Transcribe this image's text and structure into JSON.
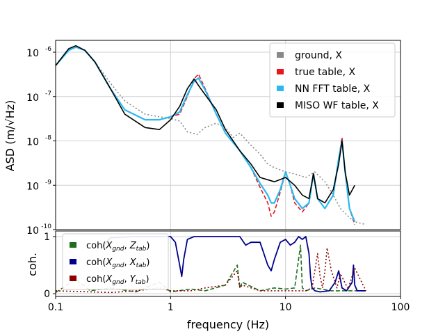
{
  "chart_data": [
    {
      "type": "line",
      "panel": "top",
      "xscale": "log",
      "yscale": "log",
      "xlim": [
        0.1,
        100
      ],
      "ylim": [
        1e-10,
        2e-06
      ],
      "xlabel": "frequency (Hz)",
      "ylabel": "ASD (m/√Hz)",
      "ytick_labels": [
        "10",
        "10",
        "10",
        "10",
        "10"
      ],
      "ytick_exponents": [
        "-6",
        "-7",
        "-8",
        "-9",
        "-10"
      ],
      "grid": true,
      "legend_position": "top-right",
      "series": [
        {
          "name": "ground, X",
          "color": "#888888",
          "style": "dotted",
          "x": [
            0.1,
            0.13,
            0.15,
            0.18,
            0.22,
            0.3,
            0.4,
            0.6,
            0.8,
            1.0,
            1.2,
            1.4,
            1.7,
            2.0,
            2.5,
            3.0,
            3.5,
            4.0,
            5.0,
            6.0,
            7.0,
            8.0,
            10.0,
            12.0,
            15.0,
            18.0,
            22.0,
            26.0,
            30.0,
            35.0,
            40.0,
            50.0
          ],
          "values": [
            5e-07,
            1.1e-06,
            1.3e-06,
            1.1e-06,
            6e-07,
            2e-07,
            8e-08,
            4e-08,
            3.5e-08,
            3.2e-08,
            2.8e-08,
            1.6e-08,
            1.4e-08,
            2e-08,
            2.5e-08,
            2e-08,
            1.2e-08,
            1.5e-08,
            8e-09,
            5e-09,
            3e-09,
            2.5e-09,
            2e-09,
            1.8e-09,
            1.5e-09,
            2e-09,
            1.2e-09,
            6e-10,
            3e-10,
            2e-10,
            1.5e-10,
            1.3e-10
          ]
        },
        {
          "name": "true table, X",
          "color": "#e8161a",
          "style": "dashed",
          "x": [
            0.1,
            0.13,
            0.15,
            0.18,
            0.22,
            0.3,
            0.4,
            0.6,
            0.8,
            1.0,
            1.2,
            1.4,
            1.6,
            1.75,
            2.0,
            2.5,
            3.0,
            4.0,
            5.0,
            6.0,
            7.0,
            7.5,
            8.0,
            9.0,
            10.0,
            11.0,
            12.0,
            14.0,
            16.0,
            17.5,
            19.0,
            22.0,
            26.0,
            29.0,
            31.0,
            33.0,
            36.0,
            40.0
          ],
          "values": [
            5e-07,
            1.1e-06,
            1.3e-06,
            1.1e-06,
            6e-07,
            1.5e-07,
            5e-08,
            3e-08,
            3e-08,
            3.5e-08,
            4e-08,
            1e-07,
            2.5e-07,
            3.2e-07,
            1.5e-07,
            4e-08,
            1.5e-08,
            6e-09,
            2.5e-09,
            9e-10,
            4e-10,
            2e-10,
            2.5e-10,
            7e-10,
            2e-09,
            1e-09,
            4e-10,
            2.5e-10,
            4e-10,
            2e-09,
            5e-10,
            3e-10,
            6e-10,
            4e-09,
            1.2e-08,
            2e-09,
            3e-10,
            1.3e-10
          ]
        },
        {
          "name": "NN FFT table, X",
          "color": "#29b9f0",
          "style": "solid",
          "x": [
            0.1,
            0.13,
            0.15,
            0.18,
            0.22,
            0.3,
            0.4,
            0.6,
            0.8,
            1.0,
            1.2,
            1.4,
            1.6,
            1.75,
            2.0,
            2.5,
            3.0,
            4.0,
            5.0,
            6.0,
            7.0,
            7.5,
            8.0,
            9.0,
            10.0,
            11.0,
            12.0,
            14.0,
            16.0,
            17.5,
            19.0,
            22.0,
            26.0,
            29.0,
            31.0,
            33.0,
            36.0,
            40.0
          ],
          "values": [
            5e-07,
            1.1e-06,
            1.3e-06,
            1.1e-06,
            6e-07,
            1.5e-07,
            5e-08,
            3e-08,
            3e-08,
            3.5e-08,
            4.5e-08,
            1.1e-07,
            2.2e-07,
            2.6e-07,
            1.4e-07,
            4e-08,
            1.5e-08,
            6e-09,
            2.5e-09,
            1.1e-09,
            6e-10,
            4e-10,
            4e-10,
            8e-10,
            2e-09,
            1e-09,
            5e-10,
            3e-10,
            4e-10,
            1.8e-09,
            5e-10,
            3e-10,
            6e-10,
            4e-09,
            1e-08,
            2e-09,
            3e-10,
            1.5e-10
          ]
        },
        {
          "name": "MISO WF table, X",
          "color": "#000000",
          "style": "solid",
          "x": [
            0.1,
            0.13,
            0.15,
            0.18,
            0.22,
            0.3,
            0.4,
            0.6,
            0.8,
            1.0,
            1.2,
            1.4,
            1.6,
            1.8,
            2.0,
            2.5,
            3.0,
            4.0,
            5.0,
            6.0,
            8.0,
            10.0,
            12.0,
            14.0,
            16.0,
            17.5,
            19.0,
            22.0,
            26.0,
            29.0,
            31.0,
            33.0,
            36.0,
            40.0
          ],
          "values": [
            5e-07,
            1.2e-06,
            1.4e-06,
            1.1e-06,
            6e-07,
            1.5e-07,
            4e-08,
            2e-08,
            1.8e-08,
            3e-08,
            6e-08,
            1.5e-07,
            2.5e-07,
            1.6e-07,
            1.1e-07,
            5e-08,
            1.8e-08,
            6e-09,
            3e-09,
            1.5e-09,
            1.2e-09,
            1.5e-09,
            1e-09,
            6e-10,
            5e-10,
            1.8e-09,
            5e-10,
            4e-10,
            8e-10,
            3e-09,
            1e-08,
            2e-09,
            6e-10,
            1e-09
          ]
        }
      ]
    },
    {
      "type": "line",
      "panel": "bottom",
      "xscale": "log",
      "xlim": [
        0.1,
        100
      ],
      "ylim": [
        0,
        1
      ],
      "xlabel": "frequency (Hz)",
      "ylabel": "coh.",
      "ytick_labels": [
        "1",
        "0"
      ],
      "xtick_labels": [
        "0.1",
        "1",
        "10",
        "100"
      ],
      "grid": true,
      "legend_position": "left",
      "series": [
        {
          "name": "coh(Xgnd, Ztab)",
          "label_parts": [
            "coh(",
            "X",
            "gnd",
            ", ",
            "Z",
            "tab",
            ")"
          ],
          "color": "#1e6e1e",
          "style": "dashed",
          "x": [
            0.1,
            0.15,
            0.2,
            0.3,
            0.5,
            0.8,
            1.0,
            1.5,
            2.0,
            3.0,
            3.8,
            4.0,
            4.2,
            6.0,
            8.0,
            10.0,
            12.0,
            13.5,
            14.0,
            15.0,
            18.0,
            25.0,
            35.0,
            50.0
          ],
          "values": [
            0.02,
            0.25,
            0.05,
            0.1,
            0.03,
            0.2,
            0.03,
            0.08,
            0.05,
            0.15,
            0.5,
            0.1,
            0.2,
            0.05,
            0.1,
            0.08,
            0.1,
            0.85,
            0.1,
            0.05,
            0.1,
            0.05,
            0.05,
            0.05
          ]
        },
        {
          "name": "coh(Xgnd, Xtab)",
          "label_parts": [
            "coh(",
            "X",
            "gnd",
            ", ",
            "X",
            "tab",
            ")"
          ],
          "color": "#00008b",
          "style": "solid",
          "x": [
            0.25,
            0.3,
            0.5,
            0.8,
            1.0,
            1.1,
            1.2,
            1.25,
            1.3,
            1.4,
            1.6,
            2.0,
            3.0,
            4.0,
            4.5,
            5.0,
            6.0,
            7.0,
            7.5,
            8.0,
            9.0,
            10.0,
            11.0,
            12.0,
            13.0,
            14.0,
            15.0,
            16.0,
            16.5,
            17.0,
            18.0,
            20.0,
            24.0,
            27.0,
            29.0,
            31.0,
            34.0,
            38.0,
            39.0,
            40.0,
            42.0,
            50.0
          ],
          "values": [
            0.8,
            0.98,
            1.0,
            1.0,
            1.0,
            0.9,
            0.5,
            0.3,
            0.6,
            0.95,
            1.0,
            1.0,
            1.0,
            1.0,
            0.85,
            0.9,
            0.9,
            0.5,
            0.4,
            0.6,
            0.9,
            0.95,
            0.85,
            0.9,
            1.0,
            0.95,
            1.0,
            0.7,
            0.3,
            0.1,
            0.05,
            0.03,
            0.05,
            0.2,
            0.4,
            0.1,
            0.05,
            0.2,
            0.5,
            0.15,
            0.05,
            0.05
          ]
        },
        {
          "name": "coh(Xgnd, Ytab)",
          "label_parts": [
            "coh(",
            "X",
            "gnd",
            ", ",
            "Y",
            "tab",
            ")"
          ],
          "color": "#8b0000",
          "style": "dotted",
          "x": [
            0.1,
            0.2,
            0.3,
            0.5,
            0.8,
            1.0,
            1.5,
            2.0,
            3.0,
            3.8,
            4.0,
            4.2,
            6.0,
            8.0,
            10.0,
            12.0,
            15.0,
            17.0,
            19.0,
            20.0,
            21.0,
            22.0,
            23.0,
            25.0,
            28.0,
            30.0,
            35.0,
            40.0,
            50.0
          ],
          "values": [
            0.05,
            0.03,
            0.02,
            0.05,
            0.1,
            0.05,
            0.05,
            0.1,
            0.15,
            0.4,
            0.1,
            0.15,
            0.05,
            0.05,
            0.05,
            0.05,
            0.05,
            0.1,
            0.7,
            0.3,
            0.1,
            0.4,
            0.8,
            0.4,
            0.1,
            0.35,
            0.08,
            0.45,
            0.05
          ]
        }
      ]
    }
  ]
}
